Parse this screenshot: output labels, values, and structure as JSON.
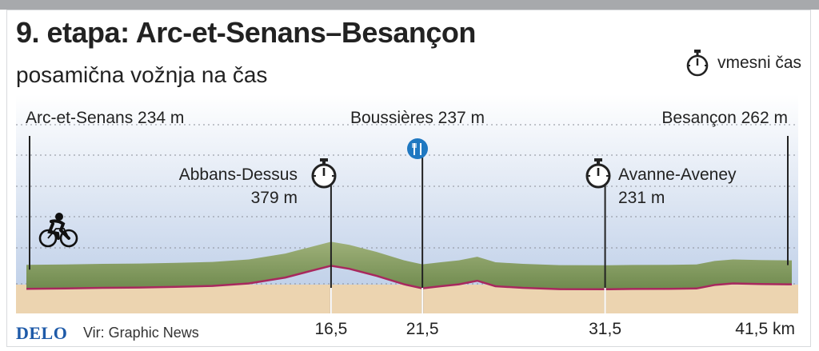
{
  "title": "9. etapa: Arc-et-Senans–Besançon",
  "subtitle": "posamična vožnja na čas",
  "legend": {
    "label": "vmesni čas",
    "icon": "stopwatch-icon"
  },
  "footer": {
    "logo": "DELO",
    "source": "Vir: Graphic News"
  },
  "colors": {
    "sky_top": "#ffffff",
    "sky_bottom": "#b9cbe6",
    "terrain_top": "#9eb079",
    "terrain_bottom": "#6f8a4e",
    "ground": "#ecd4b0",
    "route_line": "#a8285e",
    "marker_blue": "#1f78c1"
  },
  "chart_data": {
    "type": "area",
    "xlabel": "",
    "ylabel": "",
    "xlim": [
      0,
      41.5
    ],
    "ylim": [
      0,
      500
    ],
    "x_ticks": [
      {
        "x": 16.5,
        "label": "16,5"
      },
      {
        "x": 21.5,
        "label": "21,5"
      },
      {
        "x": 31.5,
        "label": "31,5"
      },
      {
        "x": 41.5,
        "label": "41,5 km"
      }
    ],
    "profile": {
      "x": [
        0,
        2,
        4,
        6,
        8,
        10,
        12,
        14,
        15.5,
        16.5,
        17.5,
        19,
        20.5,
        21.5,
        22.5,
        23.5,
        24.5,
        25.5,
        27,
        29,
        31.5,
        33,
        35,
        36.5,
        37.5,
        38.5,
        40,
        41.5
      ],
      "y": [
        234,
        236,
        240,
        242,
        246,
        252,
        268,
        305,
        350,
        379,
        360,
        315,
        262,
        237,
        250,
        262,
        285,
        250,
        240,
        232,
        231,
        233,
        234,
        236,
        258,
        268,
        264,
        262
      ]
    },
    "places": [
      {
        "name": "Arc-et-Senans 234 m",
        "elevation_label": "",
        "x": 0,
        "marker": "none"
      },
      {
        "name": "Abbans-Dessus",
        "elevation_label": "379 m",
        "x": 16.5,
        "marker": "stopwatch"
      },
      {
        "name": "Boussières 237 m",
        "elevation_label": "",
        "x": 21.5,
        "marker": "feed-zone"
      },
      {
        "name": "Avanne-Aveney",
        "elevation_label": "231 m",
        "x": 31.5,
        "marker": "stopwatch"
      },
      {
        "name": "Besançon 262 m",
        "elevation_label": "",
        "x": 41.5,
        "marker": "none"
      }
    ],
    "grid": "horizontal dotted"
  }
}
